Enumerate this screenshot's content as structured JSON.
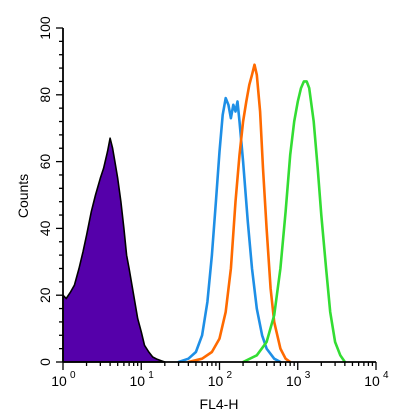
{
  "chart_data": {
    "type": "area",
    "xlabel": "FL4-H",
    "ylabel": "Counts",
    "xscale": "log",
    "xlim": [
      1,
      10000
    ],
    "ylim": [
      0,
      100
    ],
    "x_ticks": [
      {
        "value": 1,
        "base": "10",
        "exp": "0"
      },
      {
        "value": 10,
        "base": "10",
        "exp": "1"
      },
      {
        "value": 100,
        "base": "10",
        "exp": "2"
      },
      {
        "value": 1000,
        "base": "10",
        "exp": "3"
      },
      {
        "value": 10000,
        "base": "10",
        "exp": "4"
      }
    ],
    "y_ticks": [
      0,
      20,
      40,
      60,
      80,
      100
    ],
    "grid": false,
    "series": [
      {
        "color": "#5500aa",
        "style": "filled",
        "x": [
          1.0,
          1.1,
          1.25,
          1.4,
          1.6,
          1.8,
          2.0,
          2.3,
          2.6,
          3.0,
          3.3,
          3.7,
          4.0,
          4.3,
          4.6,
          5.0,
          5.5,
          6.0,
          6.5,
          7.0,
          8.0,
          9.0,
          10.0,
          11.0,
          12.5,
          14.0,
          16.0,
          18.0,
          20.0
        ],
        "y": [
          20,
          19,
          21,
          23,
          28,
          33,
          38,
          45,
          50,
          55,
          58,
          63,
          67,
          64,
          60,
          55,
          48,
          40,
          32,
          28,
          20,
          13,
          9,
          5,
          3,
          1.5,
          0.8,
          0.4,
          0
        ]
      },
      {
        "color": "#1e8fe6",
        "style": "line",
        "x": [
          30,
          40,
          50,
          60,
          70,
          80,
          90,
          100,
          110,
          120,
          130,
          140,
          150,
          160,
          170,
          180,
          200,
          230,
          260,
          300,
          350,
          400,
          500,
          600
        ],
        "y": [
          0,
          1,
          3,
          8,
          18,
          32,
          48,
          63,
          74,
          79,
          77,
          73,
          77,
          75,
          78,
          72,
          60,
          42,
          28,
          16,
          8,
          4,
          1,
          0
        ]
      },
      {
        "color": "#ff6a00",
        "style": "line",
        "x": [
          40,
          60,
          80,
          100,
          120,
          140,
          160,
          180,
          200,
          220,
          240,
          260,
          280,
          300,
          330,
          360,
          400,
          450,
          500,
          600,
          700,
          800
        ],
        "y": [
          0,
          1,
          3,
          7,
          15,
          28,
          48,
          62,
          72,
          78,
          83,
          86,
          89,
          86,
          75,
          58,
          40,
          22,
          12,
          4,
          1,
          0
        ]
      },
      {
        "color": "#33dd33",
        "style": "line",
        "x": [
          200,
          300,
          400,
          500,
          600,
          700,
          800,
          900,
          1000,
          1100,
          1200,
          1300,
          1400,
          1600,
          1800,
          2000,
          2300,
          2600,
          3000,
          3500,
          4000
        ],
        "y": [
          0,
          2,
          6,
          14,
          28,
          45,
          62,
          72,
          78,
          82,
          84,
          84,
          82,
          72,
          58,
          44,
          28,
          15,
          6,
          2,
          0
        ]
      }
    ]
  }
}
